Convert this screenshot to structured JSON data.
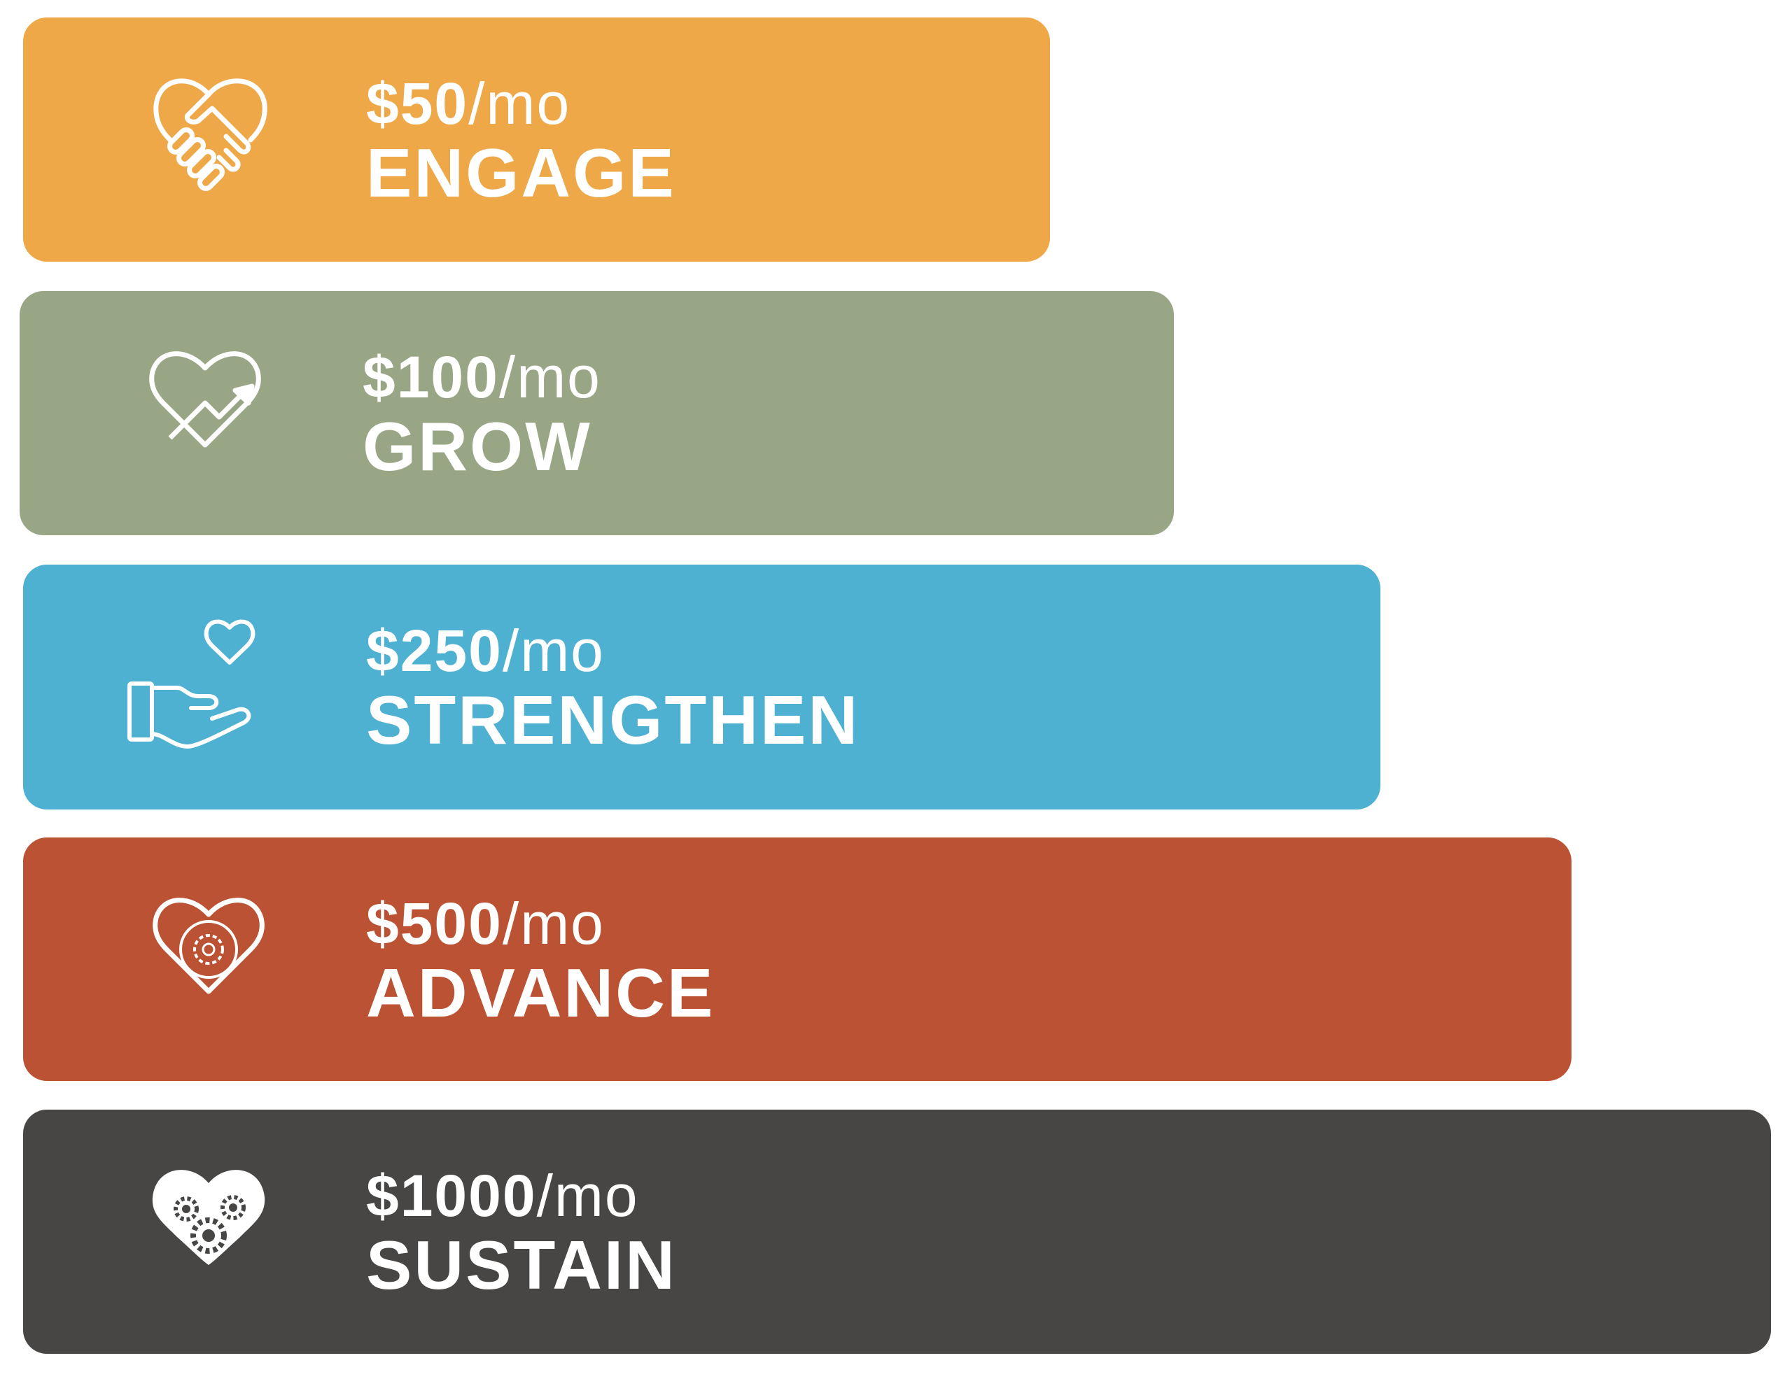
{
  "tiers": [
    {
      "amount": "$50",
      "per": "/mo",
      "name": "ENGAGE",
      "icon": "heart-handshake-icon",
      "color": "#EFA847"
    },
    {
      "amount": "$100",
      "per": "/mo",
      "name": "GROW",
      "icon": "heart-growth-arrow-icon",
      "color": "#99A686"
    },
    {
      "amount": "$250",
      "per": "/mo",
      "name": "STRENGTHEN",
      "icon": "heart-in-hand-icon",
      "color": "#4EB1D1"
    },
    {
      "amount": "$500",
      "per": "/mo",
      "name": "ADVANCE",
      "icon": "heart-gear-cycle-icon",
      "color": "#BB5233"
    },
    {
      "amount": "$1000",
      "per": "/mo",
      "name": "SUSTAIN",
      "icon": "heart-gears-icon",
      "color": "#474644"
    }
  ]
}
